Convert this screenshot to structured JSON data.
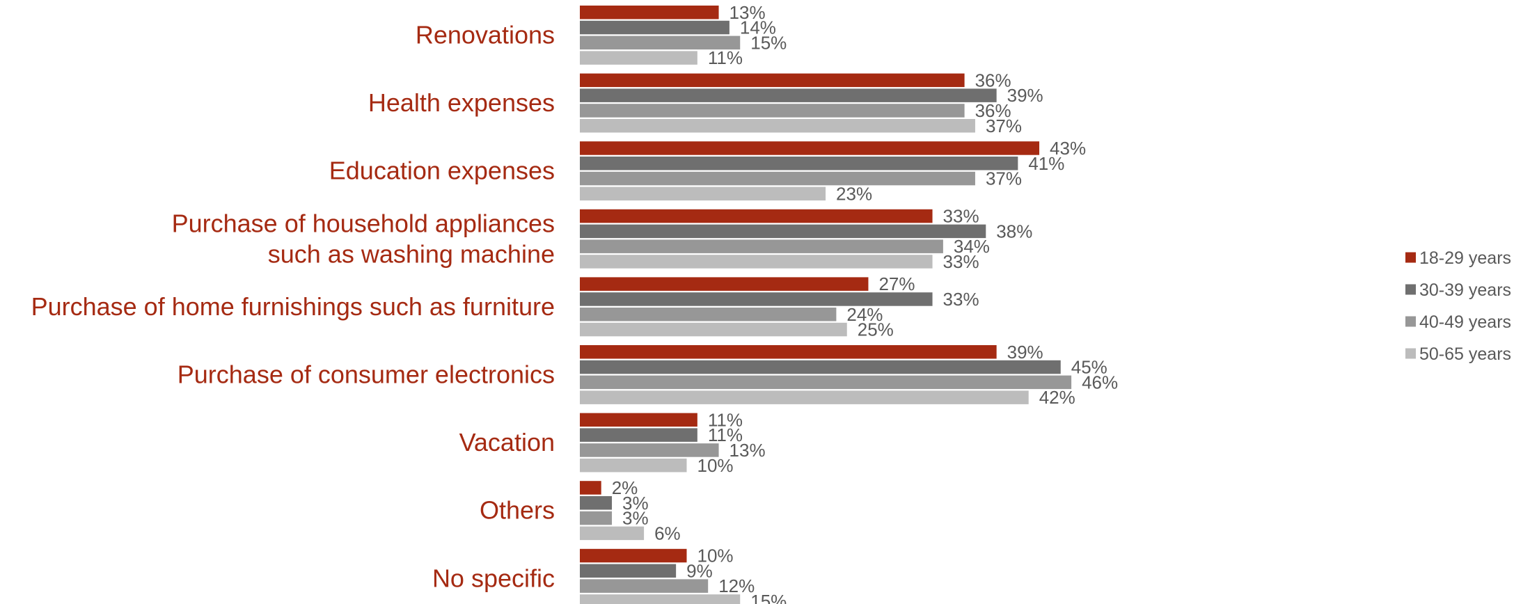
{
  "chart_data": {
    "type": "bar",
    "orientation": "horizontal",
    "categories": [
      [
        "Renovations"
      ],
      [
        "Health expenses"
      ],
      [
        "Education expenses"
      ],
      [
        "Purchase of household appliances",
        "such as washing machine"
      ],
      [
        "Purchase of home furnishings such as furniture"
      ],
      [
        "Purchase of consumer electronics"
      ],
      [
        "Vacation"
      ],
      [
        "Others"
      ],
      [
        "No specific"
      ]
    ],
    "series": [
      {
        "name": "18-29 years",
        "color": "#a52a12",
        "values": [
          13,
          36,
          43,
          33,
          27,
          39,
          11,
          2,
          10
        ],
        "labels": [
          "13%",
          "36%",
          "43%",
          "33%",
          "27%",
          "39%",
          "11%",
          "2%",
          "10%"
        ]
      },
      {
        "name": "30-39 years",
        "color": "#6f6f6f",
        "values": [
          14,
          39,
          41,
          38,
          33,
          45,
          11,
          3,
          9
        ],
        "labels": [
          "14%",
          "39%",
          "41%",
          "38%",
          "33%",
          "45%",
          "11%",
          "3%",
          "9%"
        ]
      },
      {
        "name": "40-49 years",
        "color": "#979797",
        "values": [
          15,
          36,
          37,
          34,
          24,
          46,
          13,
          3,
          12
        ],
        "labels": [
          "15%",
          "36%",
          "37%",
          "34%",
          "24%",
          "46%",
          "13%",
          "3%",
          "12%"
        ]
      },
      {
        "name": "50-65 years",
        "color": "#bcbcbc",
        "values": [
          11,
          37,
          23,
          33,
          25,
          42,
          10,
          6,
          15
        ],
        "labels": [
          "11%",
          "37%",
          "23%",
          "33%",
          "25%",
          "42%",
          "10%",
          "6%",
          "15%"
        ]
      }
    ],
    "xlim": [
      0,
      100
    ],
    "grid": false,
    "legend_position": "right",
    "category_label_color": "#a52a12",
    "value_label_color": "#595959"
  }
}
